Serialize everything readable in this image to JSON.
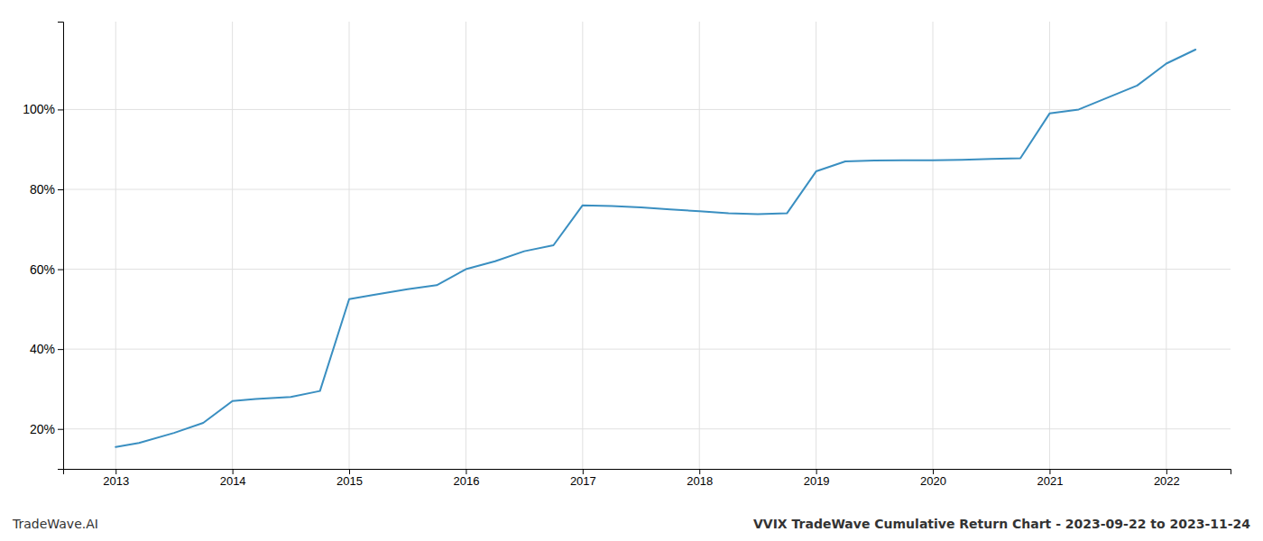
{
  "chart_data": {
    "type": "line",
    "title": "VVIX TradeWave Cumulative Return Chart - 2023-09-22 to 2023-11-24",
    "annotations": [
      "TradeWave.AI"
    ],
    "color": "#3a8fc1",
    "grid": true,
    "x": [
      2013.0,
      2013.2,
      2013.5,
      2013.75,
      2014.0,
      2014.2,
      2014.5,
      2014.75,
      2015.0,
      2015.2,
      2015.5,
      2015.75,
      2016.0,
      2016.25,
      2016.5,
      2016.75,
      2017.0,
      2017.25,
      2017.5,
      2017.75,
      2018.0,
      2018.25,
      2018.5,
      2018.75,
      2019.0,
      2019.25,
      2019.5,
      2019.75,
      2020.0,
      2020.25,
      2020.5,
      2020.75,
      2021.0,
      2021.25,
      2021.5,
      2021.75,
      2022.0,
      2022.25
    ],
    "values": [
      0.155,
      0.165,
      0.19,
      0.215,
      0.27,
      0.275,
      0.28,
      0.295,
      0.525,
      0.535,
      0.55,
      0.56,
      0.6,
      0.62,
      0.645,
      0.66,
      0.76,
      0.758,
      0.755,
      0.75,
      0.745,
      0.74,
      0.738,
      0.74,
      0.845,
      0.87,
      0.872,
      0.873,
      0.873,
      0.874,
      0.876,
      0.878,
      0.99,
      1.0,
      1.03,
      1.06,
      1.115,
      1.15
    ],
    "xlim": [
      2012.55,
      2022.55
    ],
    "ylim": [
      0.1,
      1.22
    ],
    "xticks": [
      2013,
      2014,
      2015,
      2016,
      2017,
      2018,
      2019,
      2020,
      2021,
      2022
    ],
    "yticks": [
      {
        "value": 0.2,
        "label": "20%"
      },
      {
        "value": 0.4,
        "label": "40%"
      },
      {
        "value": 0.6,
        "label": "60%"
      },
      {
        "value": 0.8,
        "label": "80%"
      },
      {
        "value": 1.0,
        "label": "100%"
      }
    ]
  }
}
